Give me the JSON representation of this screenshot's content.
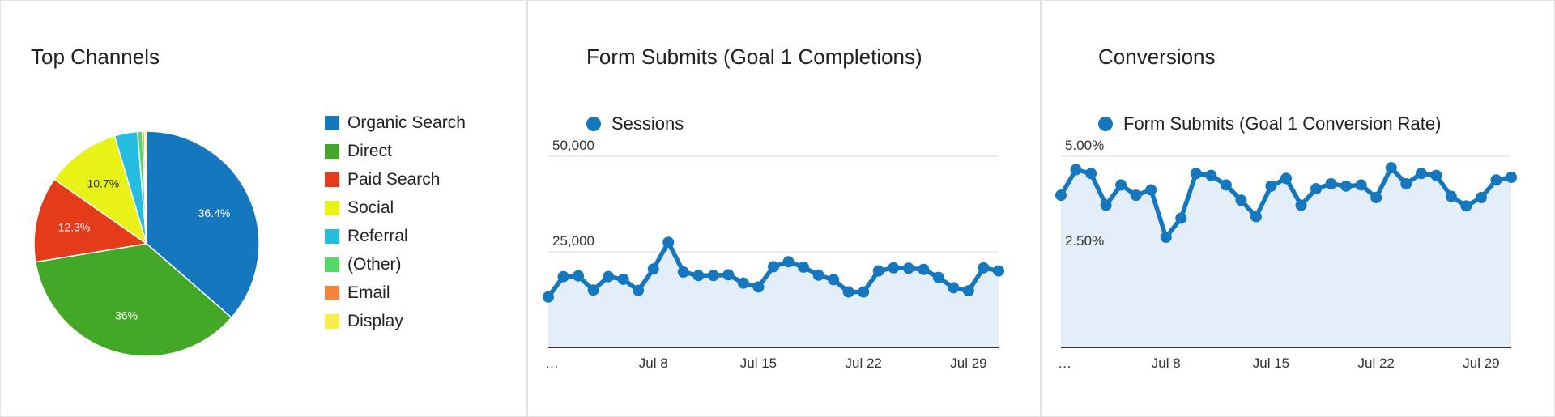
{
  "panels": [
    {
      "title": "Top Channels"
    },
    {
      "title": "Form Submits (Goal 1 Completions)",
      "series_label": "Sessions"
    },
    {
      "title": "Conversions",
      "series_label": "Form Submits (Goal 1 Conversion Rate)"
    }
  ],
  "colors": {
    "accent": "#1577be",
    "area_fill": "#e3eef8",
    "gridline": "#e0e0e0",
    "axis": "#333333",
    "panel_border": "#e3e3e3"
  },
  "legend": [
    {
      "label": "Organic Search",
      "color": "#1577be"
    },
    {
      "label": "Direct",
      "color": "#43a827"
    },
    {
      "label": "Paid Search",
      "color": "#e43b1a"
    },
    {
      "label": "Social",
      "color": "#e9f216"
    },
    {
      "label": "Referral",
      "color": "#24bde0"
    },
    {
      "label": "(Other)",
      "color": "#54d866"
    },
    {
      "label": "Email",
      "color": "#f5843e"
    },
    {
      "label": "Display",
      "color": "#f7ed4b"
    }
  ],
  "chart_data": [
    {
      "type": "pie",
      "title": "Top Channels",
      "slices": [
        {
          "name": "Organic Search",
          "value": 36.4,
          "label": "36.4%",
          "color": "#1577be"
        },
        {
          "name": "Direct",
          "value": 36.0,
          "label": "36%",
          "color": "#43a827"
        },
        {
          "name": "Paid Search",
          "value": 12.3,
          "label": "12.3%",
          "color": "#e43b1a"
        },
        {
          "name": "Social",
          "value": 10.7,
          "label": "10.7%",
          "color": "#e9f216"
        },
        {
          "name": "Referral",
          "value": 3.3,
          "label": "",
          "color": "#24bde0"
        },
        {
          "name": "(Other)",
          "value": 0.7,
          "label": "",
          "color": "#54d866"
        },
        {
          "name": "Email",
          "value": 0.3,
          "label": "",
          "color": "#f5843e"
        },
        {
          "name": "Display",
          "value": 0.3,
          "label": "",
          "color": "#f7ed4b"
        }
      ]
    },
    {
      "type": "area",
      "title": "Form Submits (Goal 1 Completions)",
      "series": [
        {
          "name": "Sessions",
          "values": [
            13200,
            18500,
            18700,
            15000,
            18500,
            17800,
            14900,
            20500,
            27500,
            19700,
            18800,
            18800,
            19000,
            16800,
            15800,
            21100,
            22400,
            21000,
            18900,
            17700,
            14500,
            14500,
            20000,
            20800,
            20700,
            20400,
            18300,
            15600,
            14800,
            20800,
            20000
          ]
        }
      ],
      "x_tick_labels": [
        "…",
        "Jul 8",
        "Jul 15",
        "Jul 22",
        "Jul 29"
      ],
      "x_tick_positions": [
        0,
        7,
        14,
        21,
        28
      ],
      "y_tick_labels": [
        "50,000",
        "25,000"
      ],
      "y_ticks": [
        50000,
        25000
      ],
      "ylim": [
        0,
        50000
      ],
      "grid": true
    },
    {
      "type": "area",
      "title": "Conversions",
      "series": [
        {
          "name": "Form Submits (Goal 1 Conversion Rate)",
          "values": [
            3.98,
            4.65,
            4.55,
            3.72,
            4.25,
            3.98,
            4.12,
            2.88,
            3.38,
            4.55,
            4.5,
            4.25,
            3.85,
            3.42,
            4.22,
            4.42,
            3.72,
            4.15,
            4.28,
            4.22,
            4.25,
            3.92,
            4.7,
            4.28,
            4.55,
            4.5,
            3.95,
            3.7,
            3.92,
            4.38,
            4.45
          ]
        }
      ],
      "x_tick_labels": [
        "…",
        "Jul 8",
        "Jul 15",
        "Jul 22",
        "Jul 29"
      ],
      "x_tick_positions": [
        0,
        7,
        14,
        21,
        28
      ],
      "y_tick_labels": [
        "5.00%",
        "2.50%"
      ],
      "y_ticks": [
        5.0,
        2.5
      ],
      "ylim": [
        0,
        5.0
      ],
      "grid": true
    }
  ]
}
